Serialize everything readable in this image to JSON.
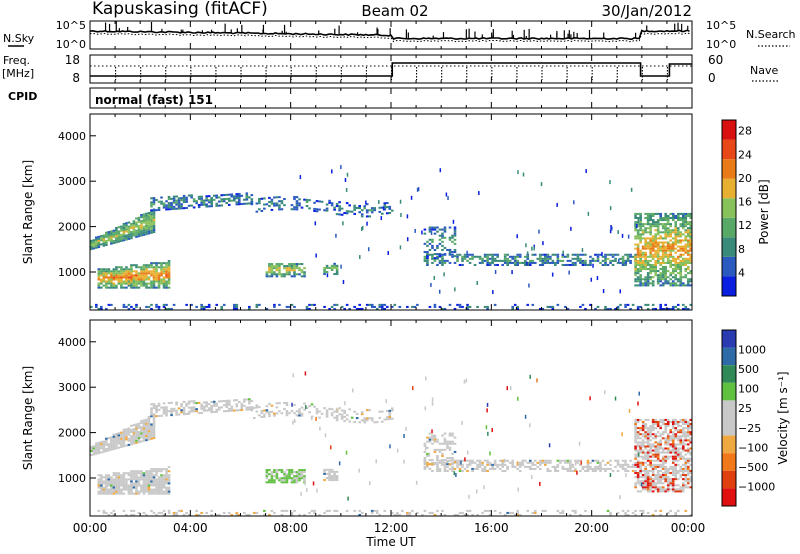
{
  "header": {
    "station": "Kapuskasing (fitACF)",
    "beam": "Beam 02",
    "date": "30/Jan/2012"
  },
  "top_panels": {
    "nsky_label": "N.Sky",
    "nsky_ticks": [
      "10^5",
      "10^0"
    ],
    "nsearch_label": "N.Search",
    "nsearch_ticks": [
      "10^5",
      "10^0"
    ],
    "freq_label": "Freq.",
    "freq_unit": "[MHz]",
    "freq_ticks": [
      "18",
      "8"
    ],
    "nave_label": "Nave",
    "nave_ticks": [
      "60",
      "0"
    ],
    "cpid_label": "CPID",
    "cpid_text": "normal (fast) 151"
  },
  "colors": {
    "power_scale": [
      "#0a1fe0",
      "#2a5ac0",
      "#3a8a7a",
      "#58a868",
      "#88c05a",
      "#e8b030",
      "#e87a18",
      "#e84818",
      "#d81010"
    ],
    "velocity_scale": [
      "#2a3ab0",
      "#2f6aa8",
      "#2f8a58",
      "#60c040",
      "#c8c8c8",
      "#c8c8c8",
      "#f0a840",
      "#f07818",
      "#e04010",
      "#e01010"
    ],
    "background_scatter": "#c8c8c8"
  },
  "chart_data": [
    {
      "type": "heatmap",
      "name": "power",
      "ylabel": "Slant Range [km]",
      "xlabel": "",
      "xlim": [
        0,
        24
      ],
      "ylim": [
        180,
        4500
      ],
      "yticks": [
        "1000",
        "2000",
        "3000",
        "4000"
      ],
      "xticks": [
        "00:00",
        "04:00",
        "08:00",
        "12:00",
        "16:00",
        "20:00",
        "00:00"
      ],
      "colorbar": {
        "label": "Power [dB]",
        "ticks": [
          "4",
          "8",
          "12",
          "16",
          "20",
          "24",
          "28"
        ],
        "range": [
          0,
          30
        ]
      }
    },
    {
      "type": "heatmap",
      "name": "velocity",
      "ylabel": "Slant Range [km]",
      "xlabel": "Time UT",
      "xlim": [
        0,
        24
      ],
      "ylim": [
        180,
        4500
      ],
      "yticks": [
        "1000",
        "2000",
        "3000",
        "4000"
      ],
      "xticks": [
        "00:00",
        "04:00",
        "08:00",
        "12:00",
        "16:00",
        "20:00",
        "00:00"
      ],
      "colorbar": {
        "label": "Velocity [m s⁻¹]",
        "ticks": [
          "1000",
          "500",
          "100",
          "25",
          "−25",
          "−100",
          "−500",
          "−1000"
        ]
      }
    }
  ]
}
